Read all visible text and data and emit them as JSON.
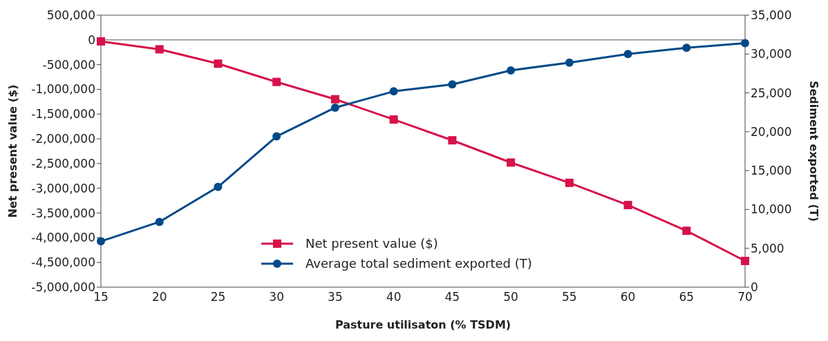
{
  "chart_data": {
    "type": "line",
    "xlabel": "Pasture utilisaton (% TSDM)",
    "ylabel": "Net present value ($)",
    "y2label": "Sediment exported (T)",
    "categories": [
      "15",
      "20",
      "25",
      "30",
      "35",
      "40",
      "45",
      "50",
      "55",
      "60",
      "65",
      "70"
    ],
    "series": [
      {
        "name": "Net present value ($)",
        "color": "#d6124a",
        "marker": "square",
        "values": [
          -30000,
          -190000,
          -480000,
          -850000,
          -1200000,
          -1610000,
          -2030000,
          -2480000,
          -2890000,
          -3340000,
          -3860000,
          -4470000
        ]
      },
      {
        "name": "Average total sediment exported (T)",
        "color": "#004a87",
        "marker": "circle",
        "axis": "y2",
        "values": [
          5900,
          8400,
          12900,
          19400,
          23100,
          25200,
          26100,
          27900,
          28900,
          30000,
          30800,
          31400
        ]
      }
    ],
    "ylim": [
      -5000000,
      500000
    ],
    "yticks": [
      {
        "value": -5000000,
        "label": "-5,000,000"
      },
      {
        "value": -4500000,
        "label": "-4,500,000"
      },
      {
        "value": -4000000,
        "label": "-4,000,000"
      },
      {
        "value": -3500000,
        "label": "-3,500,000"
      },
      {
        "value": -3000000,
        "label": "-3,000,000"
      },
      {
        "value": -2500000,
        "label": "-2,500,000"
      },
      {
        "value": -2000000,
        "label": "-2,000,000"
      },
      {
        "value": -1500000,
        "label": "-1,500,000"
      },
      {
        "value": -1000000,
        "label": "-1,000,000"
      },
      {
        "value": -500000,
        "label": "-500,000"
      },
      0,
      {
        "value": 500000,
        "label": "500,000"
      }
    ],
    "y2lim": [
      0,
      35000
    ],
    "y2ticks": [
      0,
      {
        "value": 5000,
        "label": "5,000"
      },
      {
        "value": 10000,
        "label": "10,000"
      },
      {
        "value": 15000,
        "label": "15,000"
      },
      {
        "value": 20000,
        "label": "20,000"
      },
      {
        "value": 25000,
        "label": "25,000"
      },
      {
        "value": 30000,
        "label": "30,000"
      },
      {
        "value": 35000,
        "label": "35,000"
      }
    ],
    "ref_lines": [
      {
        "axis": "y",
        "value": 0
      }
    ],
    "grid": false,
    "legend": "bottom",
    "line_style": "solid"
  }
}
